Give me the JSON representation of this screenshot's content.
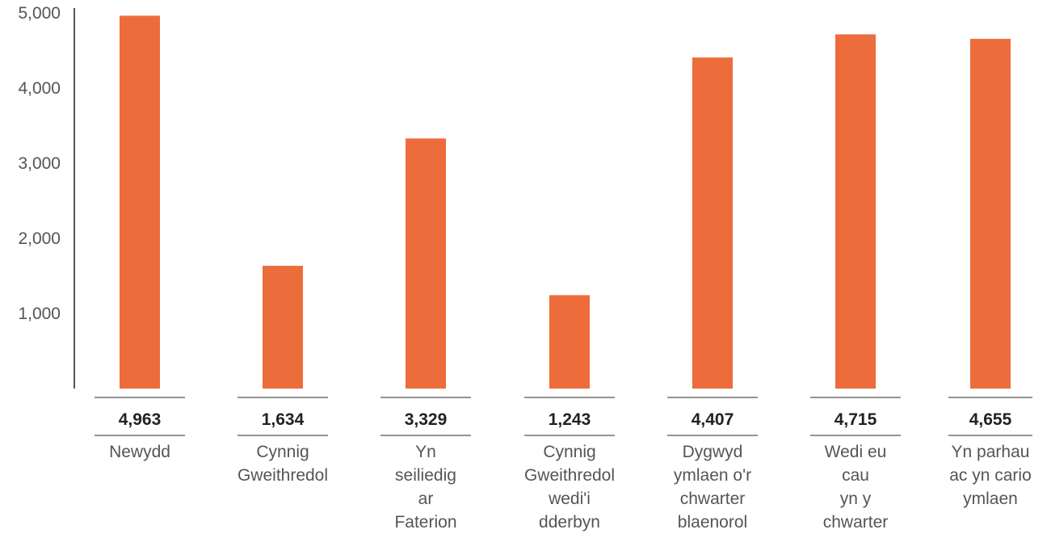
{
  "chart_data": {
    "type": "bar",
    "title": "",
    "xlabel": "",
    "ylabel": "",
    "ylim": [
      0,
      5000
    ],
    "yticks": [
      1000,
      2000,
      3000,
      4000,
      5000
    ],
    "ytick_labels": [
      "1,000",
      "2,000",
      "3,000",
      "4,000",
      "5,000"
    ],
    "grid": false,
    "legend": "none",
    "bar_color": "#ED6C3C",
    "categories": [
      [
        "Newydd"
      ],
      [
        "Cynnig",
        "Gweithredol"
      ],
      [
        "Yn",
        "seiliedig",
        "ar",
        "Faterion"
      ],
      [
        "Cynnig",
        "Gweithredol",
        "wedi'i",
        "dderbyn"
      ],
      [
        "Dygwyd",
        "ymlaen o'r",
        "chwarter",
        "blaenorol"
      ],
      [
        "Wedi eu",
        "cau",
        "yn y",
        "chwarter"
      ],
      [
        "Yn parhau",
        "ac yn cario",
        "ymlaen"
      ]
    ],
    "values": [
      4963,
      1634,
      3329,
      1243,
      4407,
      4715,
      4655
    ],
    "value_labels": [
      "4,963",
      "1,634",
      "3,329",
      "1,243",
      "4,407",
      "4,715",
      "4,655"
    ]
  }
}
